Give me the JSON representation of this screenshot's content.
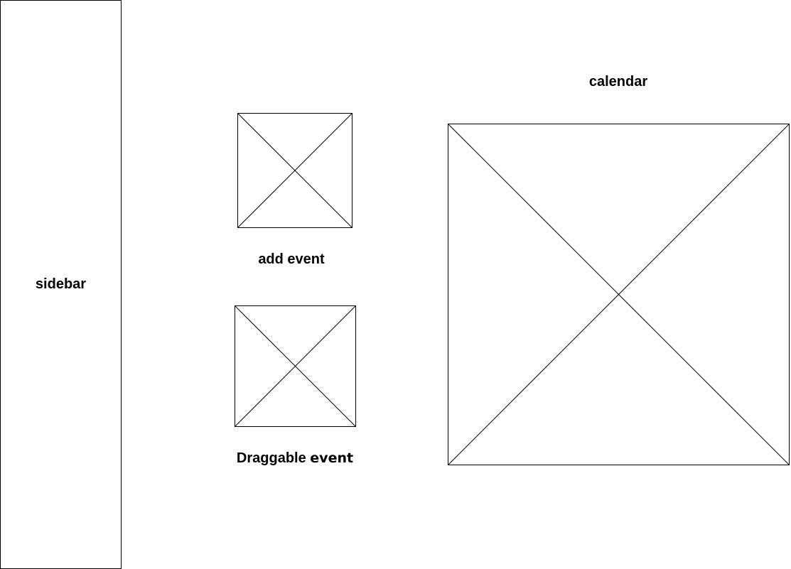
{
  "sidebar": {
    "label": "sidebar"
  },
  "add_event": {
    "label": "add event"
  },
  "draggable_event": {
    "label_part1": "Draggable",
    "label_part2": "event"
  },
  "calendar": {
    "label": "calendar"
  },
  "colors": {
    "stroke": "#000000",
    "background": "#ffffff"
  }
}
